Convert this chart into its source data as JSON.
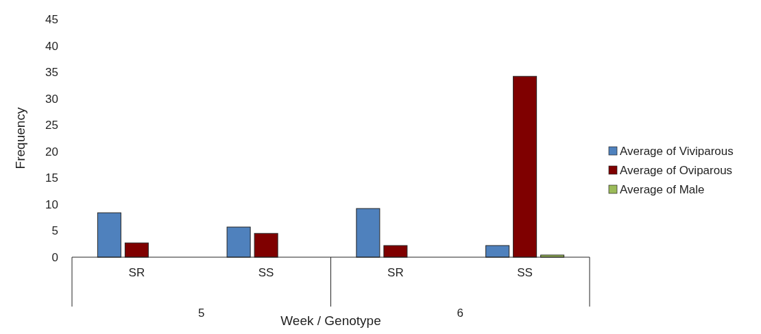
{
  "chart_data": {
    "type": "bar",
    "xlabel": "Week / Genotype",
    "ylabel": "Frequency",
    "categories": [
      "SR",
      "SS",
      "SR",
      "SS"
    ],
    "annotations": [
      "5",
      "6"
    ],
    "series": [
      {
        "name": "Average of Viviparous",
        "color": "#4f81bd",
        "values": [
          8.4,
          5.7,
          9.2,
          2.2
        ]
      },
      {
        "name": "Average of Oviparous",
        "color": "#7f0000",
        "values": [
          2.7,
          4.5,
          2.2,
          34.2
        ]
      },
      {
        "name": "Average of Male",
        "color": "#9bbb59",
        "values": [
          0,
          0,
          0,
          0.4
        ]
      }
    ],
    "ylim": [
      0,
      45
    ],
    "yticks": [
      0,
      5,
      10,
      15,
      20,
      25,
      30,
      35,
      40,
      45
    ],
    "grid": false,
    "legend": "right"
  }
}
